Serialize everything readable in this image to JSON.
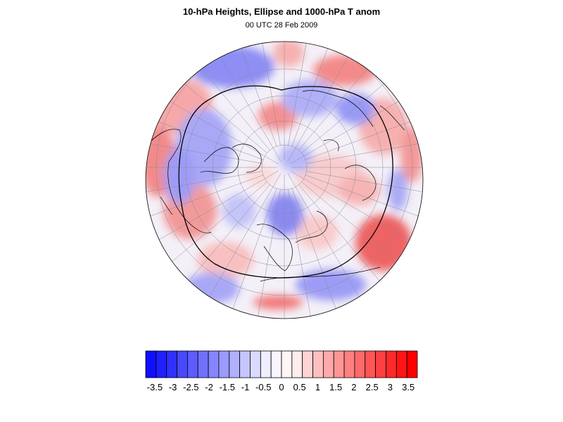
{
  "title": "10-hPa Heights, Ellipse and 1000-hPa T anom",
  "subtitle": "00 UTC 28 Feb 2009",
  "map": {
    "projection": "polar-stereographic",
    "hemisphere": "north",
    "field": "1000-hPa temperature anomaly",
    "overlay": "10-hPa height ellipse contour",
    "gridlines": true,
    "coastlines": true
  },
  "colorbar": {
    "min": -3.75,
    "max": 3.75,
    "step": 0.25,
    "colors": [
      "#1010ff",
      "#2020ff",
      "#3030ff",
      "#4848ff",
      "#5c5cff",
      "#7070ff",
      "#8585ff",
      "#9a9aff",
      "#b0b0ff",
      "#c5c5ff",
      "#dadaff",
      "#eeeeff",
      "#f8f5ff",
      "#fff5f5",
      "#ffecec",
      "#ffd4d4",
      "#ffbfbf",
      "#ffaaaa",
      "#ff9595",
      "#ff8080",
      "#ff6a6a",
      "#ff5555",
      "#ff4040",
      "#ff2a2a",
      "#ff1515",
      "#ff0000"
    ],
    "tick_labels": [
      "-3.5",
      "-3",
      "-2.5",
      "-2",
      "-1.5",
      "-1",
      "-0.5",
      "0",
      "0.5",
      "1",
      "1.5",
      "2",
      "2.5",
      "3",
      "3.5"
    ],
    "tick_values": [
      -3.5,
      -3,
      -2.5,
      -2,
      -1.5,
      -1,
      -0.5,
      0,
      0.5,
      1,
      1.5,
      2,
      2.5,
      3,
      3.5
    ]
  }
}
